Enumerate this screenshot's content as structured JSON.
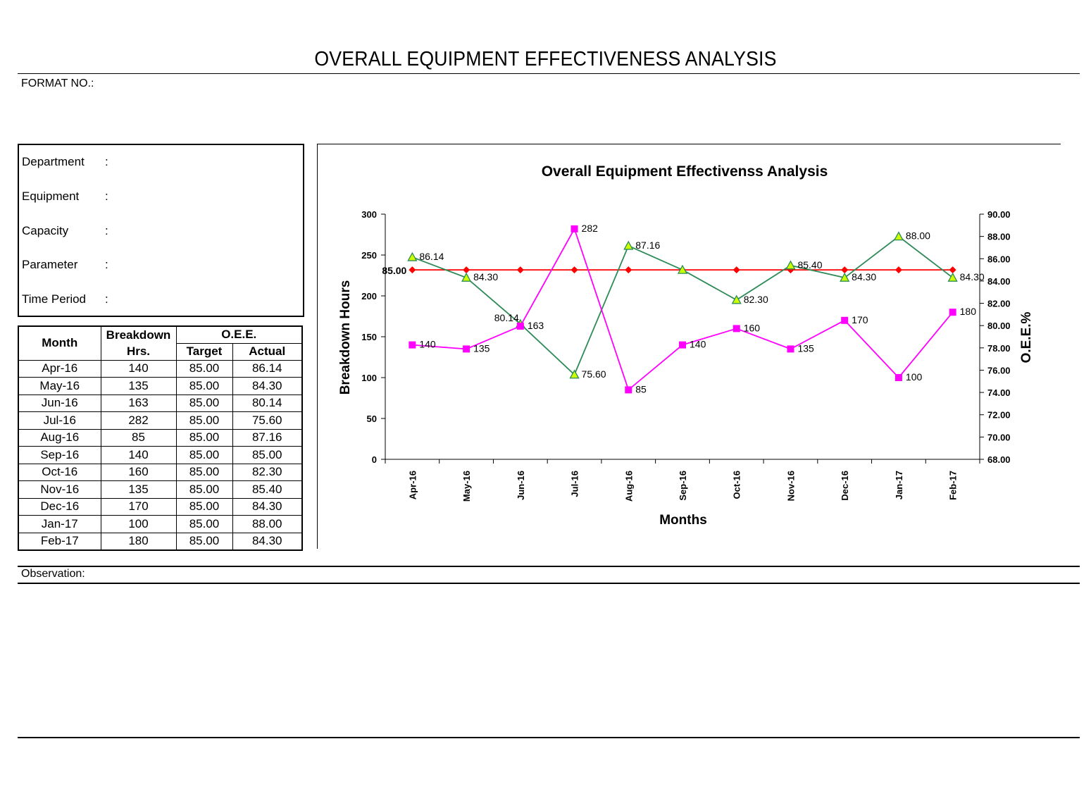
{
  "header": {
    "title": "OVERALL EQUIPMENT EFFECTIVENESS ANALYSIS",
    "format_no": "FORMAT NO.:"
  },
  "info": {
    "rows": [
      {
        "label": "Department",
        "sep": ":"
      },
      {
        "label": "Equipment",
        "sep": ":"
      },
      {
        "label": "Capacity",
        "sep": ":"
      },
      {
        "label": "Parameter",
        "sep": ":"
      },
      {
        "label": "Time Period",
        "sep": ":"
      }
    ]
  },
  "table": {
    "h_month": "Month",
    "h_breakdown_1": "Breakdown",
    "h_breakdown_2": "Hrs.",
    "h_oee": "O.E.E.",
    "h_target": "Target",
    "h_actual": "Actual",
    "rows": [
      [
        "Apr-16",
        "140",
        "85.00",
        "86.14"
      ],
      [
        "May-16",
        "135",
        "85.00",
        "84.30"
      ],
      [
        "Jun-16",
        "163",
        "85.00",
        "80.14"
      ],
      [
        "Jul-16",
        "282",
        "85.00",
        "75.60"
      ],
      [
        "Aug-16",
        "85",
        "85.00",
        "87.16"
      ],
      [
        "Sep-16",
        "140",
        "85.00",
        "85.00"
      ],
      [
        "Oct-16",
        "160",
        "85.00",
        "82.30"
      ],
      [
        "Nov-16",
        "135",
        "85.00",
        "85.40"
      ],
      [
        "Dec-16",
        "170",
        "85.00",
        "84.30"
      ],
      [
        "Jan-17",
        "100",
        "85.00",
        "88.00"
      ],
      [
        "Feb-17",
        "180",
        "85.00",
        "84.30"
      ]
    ]
  },
  "observation": "Observation:",
  "chart_data": {
    "type": "line",
    "title": "Overall Equipment Effectivenss Analysis",
    "xlabel": "Months",
    "ylabel": "Breakdown Hours",
    "y2label": "O.E.E.%",
    "categories": [
      "Apr-16",
      "May-16",
      "Jun-16",
      "Jul-16",
      "Aug-16",
      "Sep-16",
      "Oct-16",
      "Nov-16",
      "Dec-16",
      "Jan-17",
      "Feb-17"
    ],
    "ylim": [
      0,
      300
    ],
    "yticks": [
      "0",
      "50",
      "100",
      "150",
      "200",
      "250",
      "300"
    ],
    "y2lim": [
      68,
      90
    ],
    "y2ticks": [
      "68.00",
      "70.00",
      "72.00",
      "74.00",
      "76.00",
      "78.00",
      "80.00",
      "82.00",
      "84.00",
      "86.00",
      "88.00",
      "90.00"
    ],
    "series": [
      {
        "axis": "left",
        "color": "#ff00ff",
        "marker": "square",
        "values": [
          140,
          135,
          163,
          282,
          85,
          140,
          160,
          135,
          170,
          100,
          180
        ],
        "labels": [
          "140",
          "135",
          "163",
          "282",
          "85",
          "140",
          "160",
          "135",
          "170",
          "100",
          "180"
        ]
      },
      {
        "axis": "right",
        "color": "#2e8b57",
        "marker": "triangle",
        "values": [
          86.14,
          84.3,
          80.14,
          75.6,
          87.16,
          85.0,
          82.3,
          85.4,
          84.3,
          88.0,
          84.3
        ],
        "labels": [
          "86.14",
          "84.30",
          "80.14",
          "75.60",
          "87.16",
          "",
          "82.30",
          "85.40",
          "84.30",
          "88.00",
          "84.30"
        ]
      },
      {
        "axis": "right",
        "color": "#ff0000",
        "marker": "diamond",
        "values": [
          85,
          85,
          85,
          85,
          85,
          85,
          85,
          85,
          85,
          85,
          85
        ],
        "labels": [
          "85.00"
        ]
      }
    ],
    "grid": false
  }
}
